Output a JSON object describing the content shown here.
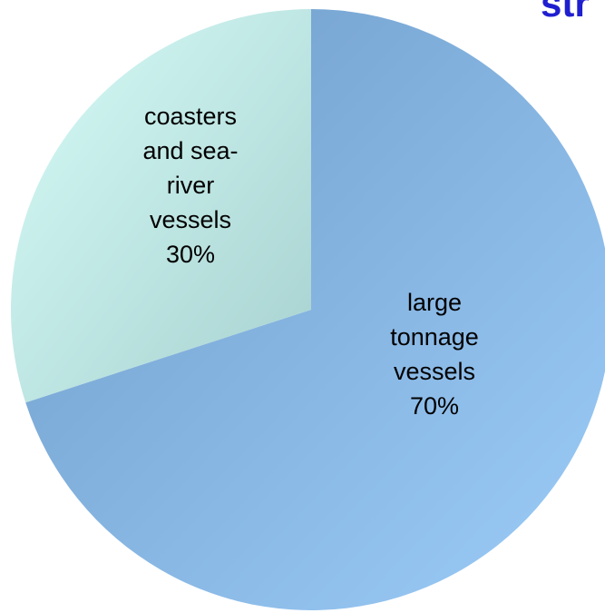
{
  "clipped_title": "str",
  "colors": {
    "title": "#1f1fd0",
    "large_slice_light": "#9cccf8",
    "large_slice_dark": "#6f9cc9",
    "small_slice_light": "#d8fcf8",
    "small_slice_dark": "#a6d1cf",
    "label": "#000000"
  },
  "chart_data": {
    "type": "pie",
    "title": "",
    "slices": [
      {
        "label_lines": [
          "large",
          "tonnage",
          "vessels",
          "70%"
        ],
        "value": 70
      },
      {
        "label_lines": [
          "coasters",
          "and sea-",
          "river",
          "vessels",
          "30%"
        ],
        "value": 30
      }
    ]
  }
}
